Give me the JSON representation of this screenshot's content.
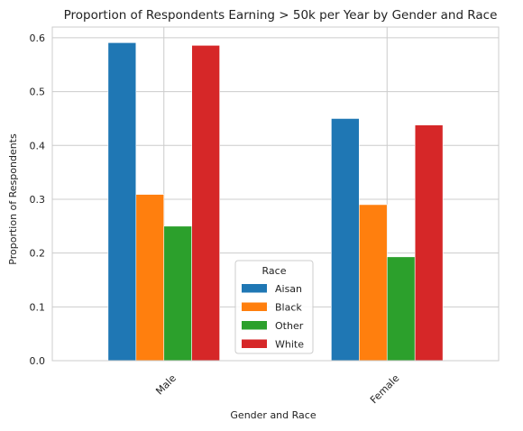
{
  "chart_data": {
    "type": "bar",
    "title": "Proportion of Respondents Earning > 50k per Year by Gender and Race",
    "xlabel": "Gender and Race",
    "ylabel": "Proportion of Respondents",
    "categories": [
      "Male",
      "Female"
    ],
    "ylim": [
      0,
      0.62
    ],
    "yticks": [
      0.0,
      0.1,
      0.2,
      0.3,
      0.4,
      0.5,
      0.6
    ],
    "ytick_labels": [
      "0.0",
      "0.1",
      "0.2",
      "0.3",
      "0.4",
      "0.5",
      "0.6"
    ],
    "grid": true,
    "legend_title": "Race",
    "legend_position": "bottom-center",
    "series": [
      {
        "name": "Aisan",
        "color": "#1f77b4",
        "values": [
          0.591,
          0.45
        ]
      },
      {
        "name": "Black",
        "color": "#ff7f0e",
        "values": [
          0.309,
          0.29
        ]
      },
      {
        "name": "Other",
        "color": "#2ca02c",
        "values": [
          0.25,
          0.193
        ]
      },
      {
        "name": "White",
        "color": "#d62728",
        "values": [
          0.586,
          0.438
        ]
      }
    ]
  }
}
